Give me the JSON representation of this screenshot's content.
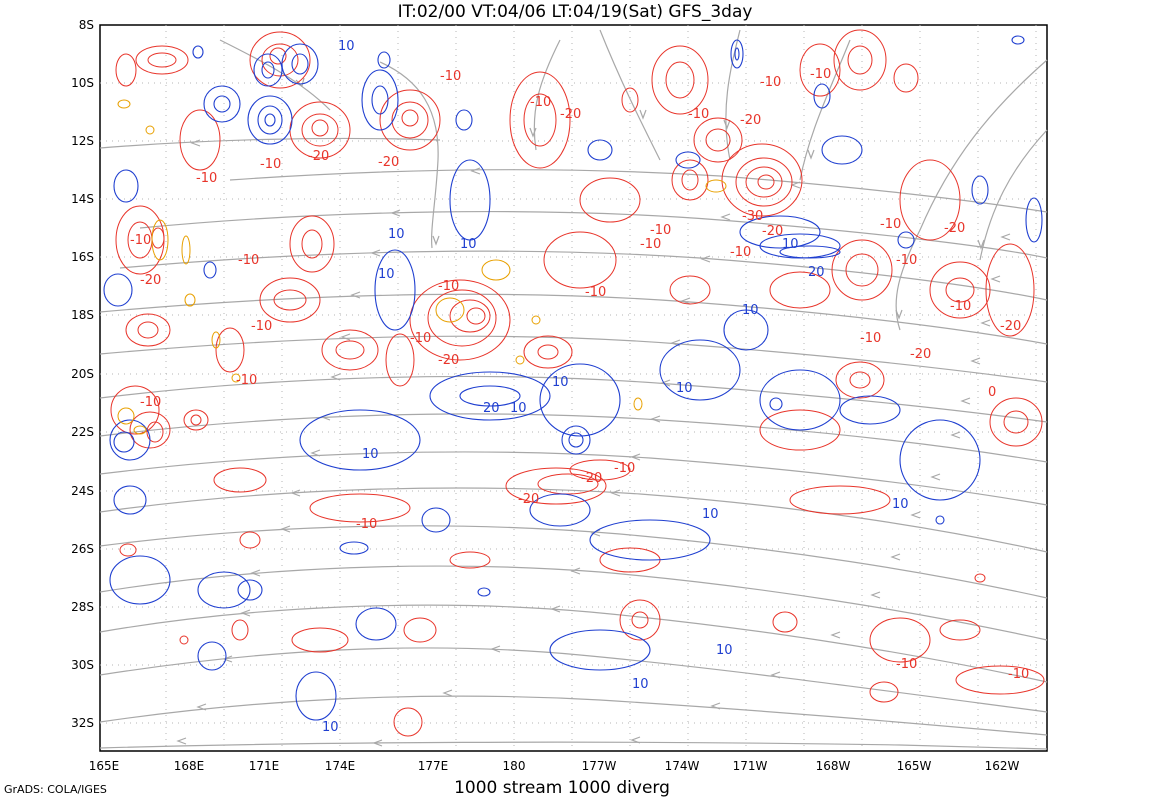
{
  "header": {
    "title": "IT:02/00  VT:04/06  LT:04/19(Sat)  GFS_3day"
  },
  "footer": {
    "caption": "1000 stream 1000 diverg",
    "credit": "GrADS: COLA/IGES"
  },
  "axes": {
    "lat_labels": [
      "8S",
      "10S",
      "12S",
      "14S",
      "16S",
      "18S",
      "20S",
      "22S",
      "24S",
      "26S",
      "28S",
      "30S",
      "32S"
    ],
    "lon_labels": [
      "165E",
      "168E",
      "171E",
      "174E",
      "177E",
      "180",
      "177W",
      "174W",
      "171W",
      "168W",
      "165W",
      "162W"
    ]
  },
  "colors": {
    "positive": "#e8342a",
    "negative": "#1f3fd0",
    "streamline": "#a8a8a8",
    "small": "#e8a000"
  },
  "contour_labels": {
    "red": [
      "-10",
      "-10",
      "-20",
      "-10",
      "-20",
      "-10",
      "-10",
      "-20",
      "-10",
      "-10",
      "-10",
      "-20",
      "-10",
      "-10",
      "-10",
      "-20",
      "-10",
      "-10",
      "-20",
      "-20",
      "-10",
      "-10",
      "-10",
      "-20",
      "-10",
      "-10",
      "-20",
      "-30",
      "-10",
      "-10",
      "-20",
      "-10",
      "-20",
      "-20",
      "-10",
      "-10",
      "-10",
      "-10",
      "-10",
      "0"
    ],
    "blue": [
      "10",
      "10",
      "10",
      "10",
      "10",
      "20",
      "10",
      "20",
      "10",
      "10",
      "10",
      "10",
      "10",
      "10",
      "10",
      "10",
      "10"
    ]
  }
}
